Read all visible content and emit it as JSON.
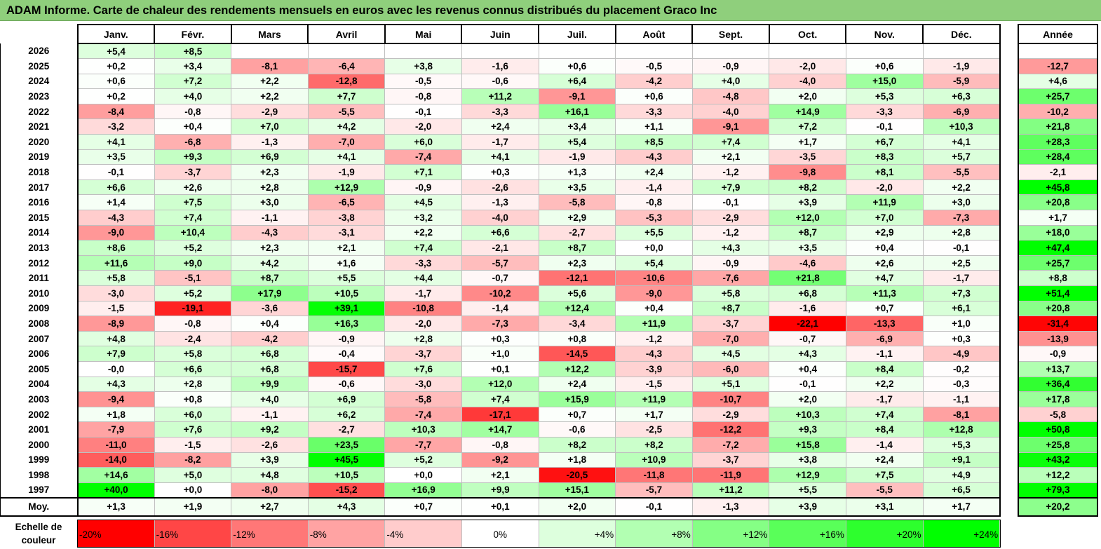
{
  "title": "ADAM Informe. Carte de chaleur des rendements mensuels en euros avec les revenus connus distribués du placement Graco Inc",
  "chart_data": {
    "type": "heatmap",
    "title": "ADAM Informe. Carte de chaleur des rendements mensuels en euros avec les revenus connus distribués du placement Graco Inc",
    "months": [
      "Janv.",
      "Févr.",
      "Mars",
      "Avril",
      "Mai",
      "Juin",
      "Juil.",
      "Août",
      "Sept.",
      "Oct.",
      "Nov.",
      "Déc."
    ],
    "year_header": "Année",
    "rows": [
      {
        "year": "2026",
        "values": [
          "+5,4",
          "+8,5",
          "",
          "",
          "",
          "",
          "",
          "",
          "",
          "",
          "",
          ""
        ],
        "annual": ""
      },
      {
        "year": "2025",
        "values": [
          "+0,2",
          "+3,4",
          "-8,1",
          "-6,4",
          "+3,8",
          "-1,6",
          "+0,6",
          "-0,5",
          "-0,9",
          "-2,0",
          "+0,6",
          "-1,9"
        ],
        "annual": "-12,7"
      },
      {
        "year": "2024",
        "values": [
          "+0,6",
          "+7,2",
          "+2,2",
          "-12,8",
          "-0,5",
          "-0,6",
          "+6,4",
          "-4,2",
          "+4,0",
          "-4,0",
          "+15,0",
          "-5,9"
        ],
        "annual": "+4,6"
      },
      {
        "year": "2023",
        "values": [
          "+0,2",
          "+4,0",
          "+2,2",
          "+7,7",
          "-0,8",
          "+11,2",
          "-9,1",
          "+0,6",
          "-4,8",
          "+2,0",
          "+5,3",
          "+6,3"
        ],
        "annual": "+25,7"
      },
      {
        "year": "2022",
        "values": [
          "-8,4",
          "-0,8",
          "-2,9",
          "-5,5",
          "-0,1",
          "-3,3",
          "+16,1",
          "-3,3",
          "-4,0",
          "+14,9",
          "-3,3",
          "-6,9"
        ],
        "annual": "-10,2"
      },
      {
        "year": "2021",
        "values": [
          "-3,2",
          "+0,4",
          "+7,0",
          "+4,2",
          "-2,0",
          "+2,4",
          "+3,4",
          "+1,1",
          "-9,1",
          "+7,2",
          "-0,1",
          "+10,3"
        ],
        "annual": "+21,8"
      },
      {
        "year": "2020",
        "values": [
          "+4,1",
          "-6,8",
          "-1,3",
          "-7,0",
          "+6,0",
          "-1,7",
          "+5,4",
          "+8,5",
          "+7,4",
          "+1,7",
          "+6,7",
          "+4,1"
        ],
        "annual": "+28,3"
      },
      {
        "year": "2019",
        "values": [
          "+3,5",
          "+9,3",
          "+6,9",
          "+4,1",
          "-7,4",
          "+4,1",
          "-1,9",
          "-4,3",
          "+2,1",
          "-3,5",
          "+8,3",
          "+5,7"
        ],
        "annual": "+28,4"
      },
      {
        "year": "2018",
        "values": [
          "-0,1",
          "-3,7",
          "+2,3",
          "-1,9",
          "+7,1",
          "+0,3",
          "+1,3",
          "+2,4",
          "-1,2",
          "-9,8",
          "+8,1",
          "-5,5"
        ],
        "annual": "-2,1"
      },
      {
        "year": "2017",
        "values": [
          "+6,6",
          "+2,6",
          "+2,8",
          "+12,9",
          "-0,9",
          "-2,6",
          "+3,5",
          "-1,4",
          "+7,9",
          "+8,2",
          "-2,0",
          "+2,2"
        ],
        "annual": "+45,8"
      },
      {
        "year": "2016",
        "values": [
          "+1,4",
          "+7,5",
          "+3,0",
          "-6,5",
          "+4,5",
          "-1,3",
          "-5,8",
          "-0,8",
          "-0,1",
          "+3,9",
          "+11,9",
          "+3,0"
        ],
        "annual": "+20,8"
      },
      {
        "year": "2015",
        "values": [
          "-4,3",
          "+7,4",
          "-1,1",
          "-3,8",
          "+3,2",
          "-4,0",
          "+2,9",
          "-5,3",
          "-2,9",
          "+12,0",
          "+7,0",
          "-7,3"
        ],
        "annual": "+1,7"
      },
      {
        "year": "2014",
        "values": [
          "-9,0",
          "+10,4",
          "-4,3",
          "-3,1",
          "+2,2",
          "+6,6",
          "-2,7",
          "+5,5",
          "-1,2",
          "+8,7",
          "+2,9",
          "+2,8"
        ],
        "annual": "+18,0"
      },
      {
        "year": "2013",
        "values": [
          "+8,6",
          "+5,2",
          "+2,3",
          "+2,1",
          "+7,4",
          "-2,1",
          "+8,7",
          "+0,0",
          "+4,3",
          "+3,5",
          "+0,4",
          "-0,1"
        ],
        "annual": "+47,4"
      },
      {
        "year": "2012",
        "values": [
          "+11,6",
          "+9,0",
          "+4,2",
          "+1,6",
          "-3,3",
          "-5,7",
          "+2,3",
          "+5,4",
          "-0,9",
          "-4,6",
          "+2,6",
          "+2,5"
        ],
        "annual": "+25,7"
      },
      {
        "year": "2011",
        "values": [
          "+5,8",
          "-5,1",
          "+8,7",
          "+5,5",
          "+4,4",
          "-0,7",
          "-12,1",
          "-10,6",
          "-7,6",
          "+21,8",
          "+4,7",
          "-1,7"
        ],
        "annual": "+8,8"
      },
      {
        "year": "2010",
        "values": [
          "-3,0",
          "+5,2",
          "+17,9",
          "+10,5",
          "-1,7",
          "-10,2",
          "+5,6",
          "-9,0",
          "+5,8",
          "+6,8",
          "+11,3",
          "+7,3"
        ],
        "annual": "+51,4"
      },
      {
        "year": "2009",
        "values": [
          "-1,5",
          "-19,1",
          "-3,6",
          "+39,1",
          "-10,8",
          "-1,4",
          "+12,4",
          "+0,4",
          "+8,7",
          "-1,6",
          "+0,7",
          "+6,1"
        ],
        "annual": "+20,8"
      },
      {
        "year": "2008",
        "values": [
          "-8,9",
          "-0,8",
          "+0,4",
          "+16,3",
          "-2,0",
          "-7,3",
          "-3,4",
          "+11,9",
          "-3,7",
          "-22,1",
          "-13,3",
          "+1,0"
        ],
        "annual": "-31,4"
      },
      {
        "year": "2007",
        "values": [
          "+4,8",
          "-2,4",
          "-4,2",
          "-0,9",
          "+2,8",
          "+0,3",
          "+0,8",
          "-1,2",
          "-7,0",
          "-0,7",
          "-6,9",
          "+0,3"
        ],
        "annual": "-13,9"
      },
      {
        "year": "2006",
        "values": [
          "+7,9",
          "+5,8",
          "+6,8",
          "-0,4",
          "-3,7",
          "+1,0",
          "-14,5",
          "-4,3",
          "+4,5",
          "+4,3",
          "-1,1",
          "-4,9"
        ],
        "annual": "-0,9"
      },
      {
        "year": "2005",
        "values": [
          "-0,0",
          "+6,6",
          "+6,8",
          "-15,7",
          "+7,6",
          "+0,1",
          "+12,2",
          "-3,9",
          "-6,0",
          "+0,4",
          "+8,4",
          "-0,2"
        ],
        "annual": "+13,7"
      },
      {
        "year": "2004",
        "values": [
          "+4,3",
          "+2,8",
          "+9,9",
          "-0,6",
          "-3,0",
          "+12,0",
          "+2,4",
          "-1,5",
          "+5,1",
          "-0,1",
          "+2,2",
          "-0,3"
        ],
        "annual": "+36,4"
      },
      {
        "year": "2003",
        "values": [
          "-9,4",
          "+0,8",
          "+4,0",
          "+6,9",
          "-5,8",
          "+7,4",
          "+15,9",
          "+11,9",
          "-10,7",
          "+2,0",
          "-1,7",
          "-1,1"
        ],
        "annual": "+17,8"
      },
      {
        "year": "2002",
        "values": [
          "+1,8",
          "+6,0",
          "-1,1",
          "+6,2",
          "-7,4",
          "-17,1",
          "+0,7",
          "+1,7",
          "-2,9",
          "+10,3",
          "+7,4",
          "-8,1"
        ],
        "annual": "-5,8"
      },
      {
        "year": "2001",
        "values": [
          "-7,9",
          "+7,6",
          "+9,2",
          "-2,7",
          "+10,3",
          "+14,7",
          "-0,6",
          "-2,5",
          "-12,2",
          "+9,3",
          "+8,4",
          "+12,8"
        ],
        "annual": "+50,8"
      },
      {
        "year": "2000",
        "values": [
          "-11,0",
          "-1,5",
          "-2,6",
          "+23,5",
          "-7,7",
          "-0,8",
          "+8,2",
          "+8,2",
          "-7,2",
          "+15,8",
          "-1,4",
          "+5,3"
        ],
        "annual": "+25,8"
      },
      {
        "year": "1999",
        "values": [
          "-14,0",
          "-8,2",
          "+3,9",
          "+45,5",
          "+5,2",
          "-9,2",
          "+1,8",
          "+10,9",
          "-3,7",
          "+3,8",
          "+2,4",
          "+9,1"
        ],
        "annual": "+43,2"
      },
      {
        "year": "1998",
        "values": [
          "+14,6",
          "+5,0",
          "+4,8",
          "+10,5",
          "+0,0",
          "+2,1",
          "-20,5",
          "-11,8",
          "-11,9",
          "+12,9",
          "+7,5",
          "+4,9"
        ],
        "annual": "+12,2"
      },
      {
        "year": "1997",
        "values": [
          "+40,0",
          "+0,0",
          "-8,0",
          "-15,2",
          "+16,9",
          "+9,9",
          "+15,1",
          "-5,7",
          "+11,2",
          "+5,5",
          "-5,5",
          "+6,5"
        ],
        "annual": "+79,3"
      }
    ],
    "average": {
      "label": "Moy.",
      "values": [
        "+1,3",
        "+1,9",
        "+2,7",
        "+4,3",
        "+0,7",
        "+0,1",
        "+2,0",
        "-0,1",
        "-1,3",
        "+3,9",
        "+3,1",
        "+1,7"
      ],
      "annual": "+20,2"
    },
    "scale": {
      "label": "Echelle de couleur",
      "stops": [
        "-20%",
        "-16%",
        "-12%",
        "-8%",
        "-4%",
        "0%",
        "+4%",
        "+8%",
        "+12%",
        "+16%",
        "+20%",
        "+24%"
      ],
      "colors": [
        "#ff0000",
        "#ff4646",
        "#ff7777",
        "#ffa3a3",
        "#ffcccc",
        "#ffffff",
        "#ddffdd",
        "#b2ffb2",
        "#85ff85",
        "#59ff59",
        "#2dff2d",
        "#00ff00"
      ]
    },
    "colors": {
      "negative_max": "#ff0000",
      "neutral": "#ffffff",
      "positive_max": "#00ff00",
      "title_bar": "#8fcf7c"
    }
  }
}
